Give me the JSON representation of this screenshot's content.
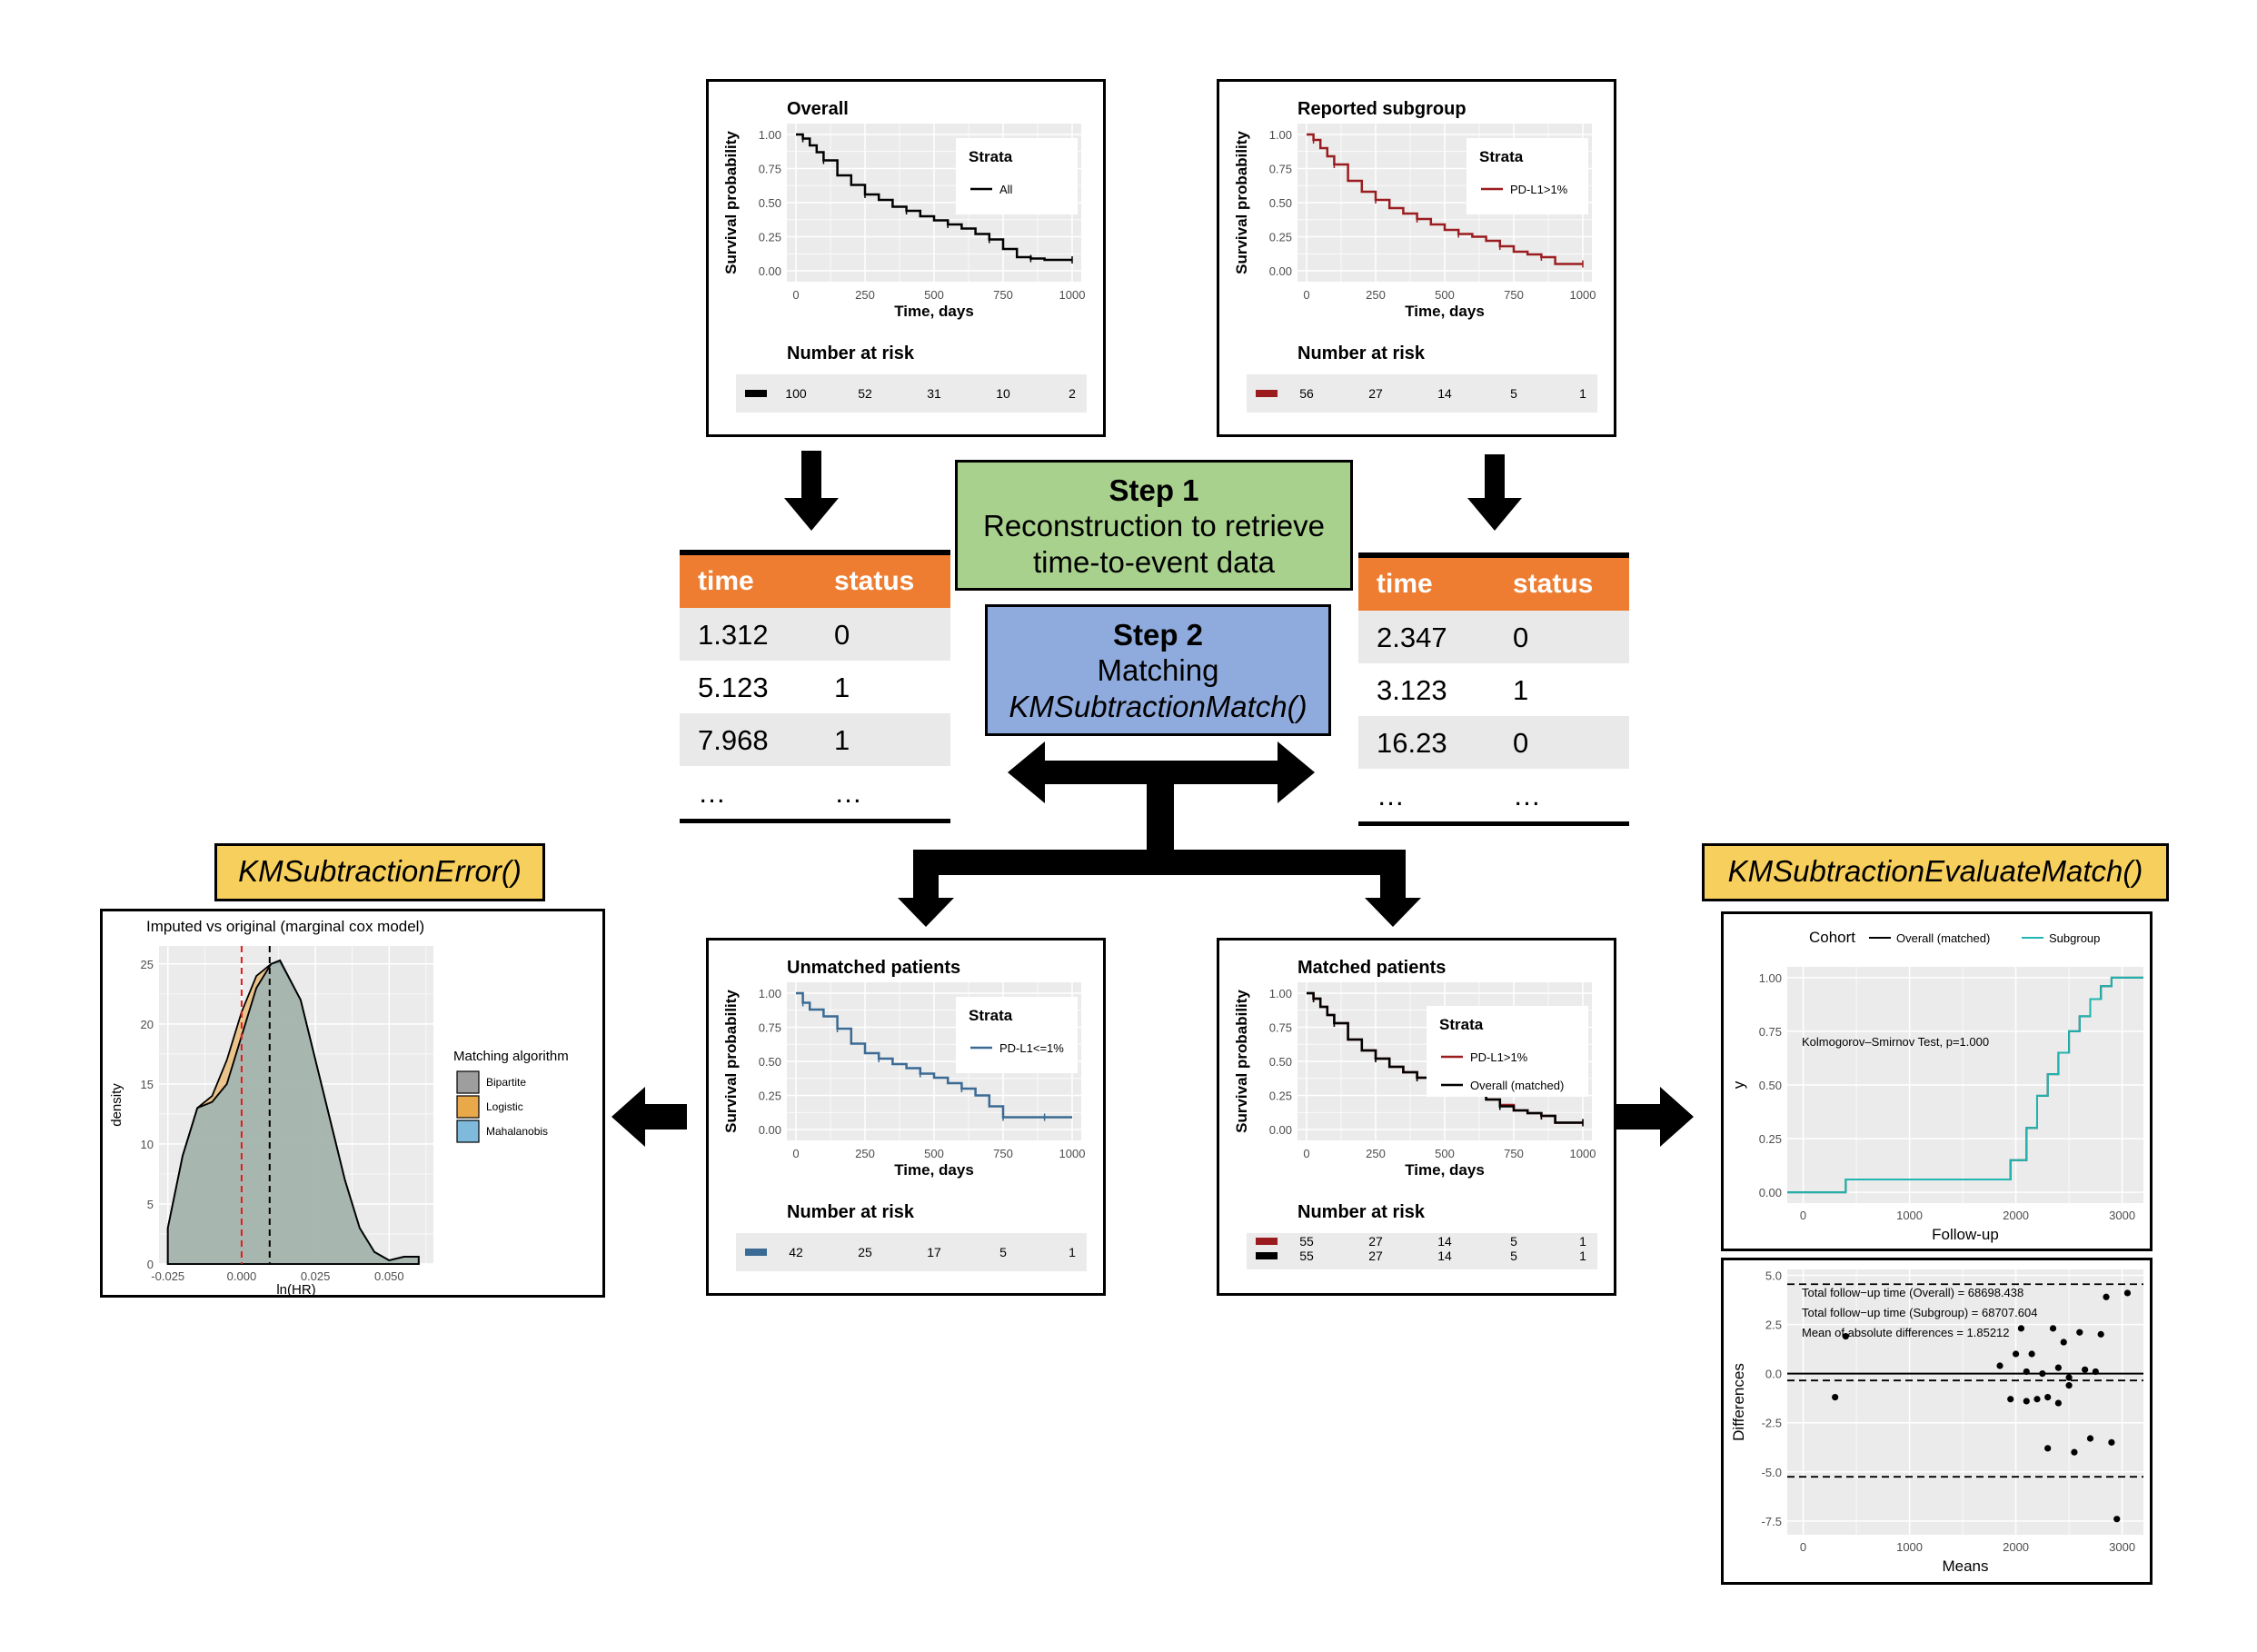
{
  "step1": {
    "title": "Step 1",
    "line1": "Reconstruction to retrieve",
    "line2": "time-to-event data",
    "color": "#a9d18e"
  },
  "step2": {
    "title": "Step 2",
    "line1": "Matching",
    "line2": "KMSubtractionMatch()",
    "color": "#8faadc"
  },
  "fn_error": "KMSubtractionError()",
  "fn_evaluate": "KMSubtractionEvaluateMatch()",
  "table_left": {
    "headers": [
      "time",
      "status"
    ],
    "rows": [
      [
        "1.312",
        "0"
      ],
      [
        "5.123",
        "1"
      ],
      [
        "7.968",
        "1"
      ],
      [
        "…",
        "…"
      ]
    ]
  },
  "table_right": {
    "headers": [
      "time",
      "status"
    ],
    "rows": [
      [
        "2.347",
        "0"
      ],
      [
        "3.123",
        "1"
      ],
      [
        "16.23",
        "0"
      ],
      [
        "…",
        "…"
      ]
    ]
  },
  "km_common": {
    "ylabel": "Survival probability",
    "xlabel": "Time, days",
    "yticks": [
      "0.00",
      "0.25",
      "0.50",
      "0.75",
      "1.00"
    ],
    "xticks": [
      "0",
      "250",
      "500",
      "750",
      "1000"
    ],
    "legend_title": "Strata",
    "risk_title": "Number at risk"
  },
  "chart_data": [
    {
      "type": "line",
      "title": "Overall",
      "xlabel": "Time, days",
      "ylabel": "Survival probability",
      "xlim": [
        0,
        1000
      ],
      "ylim": [
        0,
        1
      ],
      "series": [
        {
          "name": "All",
          "color": "#000000",
          "x": [
            0,
            25,
            50,
            75,
            100,
            150,
            200,
            250,
            300,
            350,
            400,
            450,
            500,
            550,
            600,
            650,
            700,
            750,
            800,
            850,
            900,
            950,
            1000
          ],
          "y": [
            1.0,
            0.97,
            0.92,
            0.87,
            0.81,
            0.7,
            0.63,
            0.56,
            0.52,
            0.47,
            0.44,
            0.4,
            0.37,
            0.34,
            0.31,
            0.27,
            0.23,
            0.16,
            0.1,
            0.09,
            0.08,
            0.08,
            0.08
          ]
        }
      ],
      "risk": [
        {
          "color": "#000000",
          "values": [
            "100",
            "52",
            "31",
            "10",
            "2"
          ]
        }
      ]
    },
    {
      "type": "line",
      "title": "Reported subgroup",
      "xlabel": "Time, days",
      "ylabel": "Survival probability",
      "xlim": [
        0,
        1000
      ],
      "ylim": [
        0,
        1
      ],
      "series": [
        {
          "name": "PD-L1>1%",
          "color": "#9b1c1f",
          "x": [
            0,
            25,
            50,
            75,
            100,
            150,
            200,
            250,
            300,
            350,
            400,
            450,
            500,
            550,
            600,
            650,
            700,
            750,
            800,
            850,
            900,
            950,
            1000
          ],
          "y": [
            1.0,
            0.96,
            0.9,
            0.84,
            0.78,
            0.66,
            0.58,
            0.52,
            0.46,
            0.42,
            0.38,
            0.34,
            0.3,
            0.27,
            0.25,
            0.22,
            0.18,
            0.14,
            0.12,
            0.1,
            0.05,
            0.05,
            0.05
          ]
        }
      ],
      "risk": [
        {
          "color": "#9b1c1f",
          "values": [
            "56",
            "27",
            "14",
            "5",
            "1"
          ]
        }
      ]
    },
    {
      "type": "line",
      "title": "Unmatched patients",
      "xlabel": "Time, days",
      "ylabel": "Survival probability",
      "xlim": [
        0,
        1000
      ],
      "ylim": [
        0,
        1
      ],
      "series": [
        {
          "name": "PD-L1<=1%",
          "color": "#3b6a94",
          "x": [
            0,
            25,
            50,
            100,
            150,
            200,
            250,
            300,
            350,
            400,
            450,
            500,
            550,
            600,
            650,
            700,
            750,
            800,
            850,
            900,
            950,
            1000
          ],
          "y": [
            1.0,
            0.93,
            0.88,
            0.83,
            0.74,
            0.63,
            0.56,
            0.52,
            0.48,
            0.45,
            0.41,
            0.38,
            0.34,
            0.3,
            0.25,
            0.17,
            0.09,
            0.09,
            0.09,
            0.09,
            0.09,
            0.09
          ]
        }
      ],
      "risk": [
        {
          "color": "#3b6a94",
          "values": [
            "42",
            "25",
            "17",
            "5",
            "1"
          ]
        }
      ]
    },
    {
      "type": "line",
      "title": "Matched patients",
      "xlabel": "Time, days",
      "ylabel": "Survival probability",
      "xlim": [
        0,
        1000
      ],
      "ylim": [
        0,
        1
      ],
      "series": [
        {
          "name": "PD-L1>1%",
          "color": "#9b1c1f",
          "x": [
            0,
            25,
            50,
            75,
            100,
            150,
            200,
            250,
            300,
            350,
            400,
            450,
            500,
            550,
            600,
            650,
            700,
            750,
            800,
            850,
            900,
            950,
            1000
          ],
          "y": [
            1.0,
            0.96,
            0.9,
            0.84,
            0.78,
            0.66,
            0.58,
            0.52,
            0.46,
            0.42,
            0.38,
            0.34,
            0.3,
            0.27,
            0.25,
            0.22,
            0.18,
            0.14,
            0.12,
            0.1,
            0.05,
            0.05,
            0.05
          ]
        },
        {
          "name": "Overall (matched)",
          "color": "#000000",
          "x": [
            0,
            25,
            50,
            75,
            100,
            150,
            200,
            250,
            300,
            350,
            400,
            450,
            500,
            550,
            600,
            650,
            700,
            750,
            800,
            850,
            900,
            950,
            1000
          ],
          "y": [
            1.0,
            0.96,
            0.9,
            0.84,
            0.78,
            0.66,
            0.58,
            0.52,
            0.46,
            0.42,
            0.38,
            0.33,
            0.3,
            0.27,
            0.25,
            0.22,
            0.17,
            0.14,
            0.12,
            0.1,
            0.05,
            0.05,
            0.05
          ]
        }
      ],
      "risk": [
        {
          "color": "#9b1c1f",
          "values": [
            "55",
            "27",
            "14",
            "5",
            "1"
          ]
        },
        {
          "color": "#000000",
          "values": [
            "55",
            "27",
            "14",
            "5",
            "1"
          ]
        }
      ]
    },
    {
      "type": "area",
      "title": "Imputed vs original (marginal cox model)",
      "xlabel": "ln(HR)",
      "ylabel": "density",
      "xlim": [
        -0.028,
        0.065
      ],
      "ylim": [
        0,
        26.5
      ],
      "xticks": [
        "-0.025",
        "0.000",
        "0.025",
        "0.050"
      ],
      "yticks": [
        "0",
        "5",
        "10",
        "15",
        "20",
        "25"
      ],
      "legend_title": "Matching algorithm",
      "vlines": [
        {
          "x": 0.0,
          "color": "#e31a1c"
        },
        {
          "x": 0.0095,
          "color": "#000000"
        }
      ],
      "series": [
        {
          "name": "Bipartite",
          "color": "#9e9e9e",
          "x": [
            -0.025,
            -0.02,
            -0.015,
            -0.01,
            -0.005,
            0.0,
            0.005,
            0.01,
            0.013,
            0.02,
            0.025,
            0.03,
            0.035,
            0.04,
            0.045,
            0.05,
            0.055,
            0.06
          ],
          "y": [
            3,
            9,
            13,
            13.5,
            15,
            19,
            23,
            25,
            25.3,
            22,
            17,
            12,
            7,
            3,
            1,
            0.3,
            0.6,
            0.6
          ]
        },
        {
          "name": "Logistic",
          "color": "#e9a849",
          "x": [
            -0.025,
            -0.02,
            -0.015,
            -0.01,
            -0.005,
            0.0,
            0.005,
            0.01,
            0.013,
            0.02,
            0.025,
            0.03,
            0.035,
            0.04,
            0.045,
            0.05,
            0.055,
            0.06
          ],
          "y": [
            3,
            9,
            13,
            14,
            17,
            21,
            24,
            25,
            25.2,
            22,
            17,
            12,
            7,
            3,
            1,
            0.3,
            0.6,
            0.6
          ]
        },
        {
          "name": "Mahalanobis",
          "color": "#7fb9dc",
          "x": [
            -0.025,
            -0.02,
            -0.015,
            -0.01,
            -0.005,
            0.0,
            0.005,
            0.01,
            0.013,
            0.02,
            0.025,
            0.03,
            0.035,
            0.04,
            0.045,
            0.05,
            0.055,
            0.06
          ],
          "y": [
            3,
            9,
            13,
            13.5,
            15,
            19,
            23,
            25,
            25.3,
            22,
            17,
            12,
            7,
            3,
            1,
            0.3,
            0.6,
            0.6
          ]
        }
      ]
    },
    {
      "type": "line",
      "title": "",
      "xlabel": "Follow-up",
      "ylabel": "y",
      "xlim": [
        -150,
        3200
      ],
      "ylim": [
        -0.05,
        1.05
      ],
      "xticks": [
        "0",
        "1000",
        "2000",
        "3000"
      ],
      "yticks": [
        "0.00",
        "0.25",
        "0.50",
        "0.75",
        "1.00"
      ],
      "legend_title": "Cohort",
      "annotation": "Kolmogorov–Smirnov Test, p=1.000",
      "series": [
        {
          "name": "Overall (matched)",
          "color": "#000000",
          "x": [
            -150,
            350,
            400,
            1850,
            1950,
            2100,
            2200,
            2300,
            2400,
            2500,
            2600,
            2700,
            2800,
            2900,
            3000,
            3200
          ],
          "y": [
            0,
            0,
            0.06,
            0.06,
            0.15,
            0.3,
            0.45,
            0.55,
            0.65,
            0.75,
            0.82,
            0.9,
            0.96,
            1.0,
            1.0,
            1.0
          ]
        },
        {
          "name": "Subgroup",
          "color": "#1fb5b0",
          "x": [
            -150,
            350,
            400,
            1850,
            1950,
            2100,
            2200,
            2300,
            2400,
            2500,
            2600,
            2700,
            2800,
            2900,
            3000,
            3200
          ],
          "y": [
            0,
            0,
            0.06,
            0.06,
            0.15,
            0.3,
            0.45,
            0.55,
            0.65,
            0.75,
            0.82,
            0.9,
            0.96,
            1.0,
            1.0,
            1.0
          ]
        }
      ]
    },
    {
      "type": "scatter",
      "title": "",
      "xlabel": "Means",
      "ylabel": "Differences",
      "xlim": [
        -150,
        3200
      ],
      "ylim": [
        -8.2,
        5.3
      ],
      "xticks": [
        "0",
        "1000",
        "2000",
        "3000"
      ],
      "yticks": [
        "-7.5",
        "-5.0",
        "-2.5",
        "0.0",
        "2.5",
        "5.0"
      ],
      "annotations": [
        "Total follow−up time (Overall) = 68698.438",
        "Total follow−up time (Subgroup) = 68707.604",
        "Mean of absolute differences = 1.85212"
      ],
      "hlines": [
        {
          "y": 4.55,
          "style": "dashed"
        },
        {
          "y": -5.25,
          "style": "dashed"
        },
        {
          "y": -0.35,
          "style": "dashed"
        },
        {
          "y": 0.0,
          "style": "solid"
        }
      ],
      "points": {
        "x": [
          400,
          300,
          1850,
          1950,
          2000,
          2050,
          2100,
          2150,
          2200,
          2250,
          2300,
          2350,
          2400,
          2400,
          2450,
          2500,
          2550,
          2600,
          2650,
          2700,
          2750,
          2800,
          2850,
          2900,
          2950,
          3050,
          2100,
          2300,
          2500
        ],
        "y": [
          1.9,
          -1.2,
          0.4,
          -1.3,
          1.0,
          2.3,
          0.1,
          1.0,
          -1.3,
          0.0,
          -3.8,
          2.3,
          0.3,
          -1.5,
          1.6,
          -0.6,
          -4.0,
          2.1,
          0.2,
          -3.3,
          0.1,
          2.0,
          3.9,
          -3.5,
          -7.4,
          4.1,
          -1.4,
          -1.2,
          -0.2
        ]
      }
    }
  ]
}
